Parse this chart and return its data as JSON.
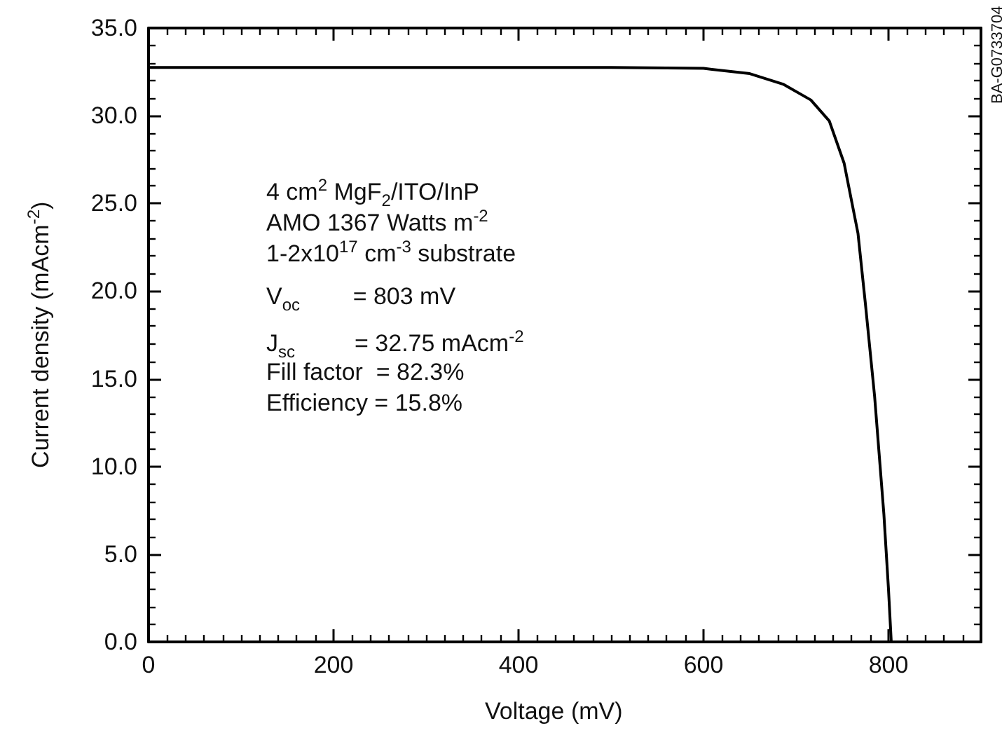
{
  "chart_data": {
    "type": "line",
    "xlabel": "Voltage (mV)",
    "ylabel": "Current density (mAcm$^{-2}$)",
    "xlim": [
      0,
      900
    ],
    "xticks": [
      0,
      200,
      400,
      600,
      800
    ],
    "ylim": [
      0,
      35
    ],
    "yticks": [
      {
        "value": 0,
        "label": "0.0"
      },
      {
        "value": 5,
        "label": "5.0"
      },
      {
        "value": 10,
        "label": "10.0"
      },
      {
        "value": 15,
        "label": "15.0"
      },
      {
        "value": 20,
        "label": "20.0"
      },
      {
        "value": 25,
        "label": "25.0"
      },
      {
        "value": 30,
        "label": "30.0"
      },
      {
        "value": 35,
        "label": "35.0"
      }
    ],
    "grid": false,
    "marker": "none",
    "line_style": "solid",
    "series": [
      {
        "color": "#000000",
        "x": [
          0,
          200,
          400,
          500,
          600,
          650,
          686,
          716,
          736,
          752,
          767,
          775,
          785,
          795,
          800,
          803
        ],
        "values": [
          32.75,
          32.75,
          32.75,
          32.75,
          32.7,
          32.4,
          31.8,
          30.9,
          29.7,
          27.3,
          23.3,
          19.3,
          14.0,
          7.3,
          3.0,
          0
        ]
      }
    ],
    "annotations": [
      "4 cm$^{2}$ MgF$_{2}$/ITO/InP",
      "AMO 1367 Watts m$^{-2}$",
      "1-2x10$^{17}$ cm$^{-3}$ substrate",
      "V$_{oc}$        = 803 mV",
      "J$_{sc}$         = 32.75 mAcm$^{-2}$",
      "Fill factor  = 82.3%",
      "Efficiency = 15.8%",
      "BA-G0733704"
    ]
  }
}
